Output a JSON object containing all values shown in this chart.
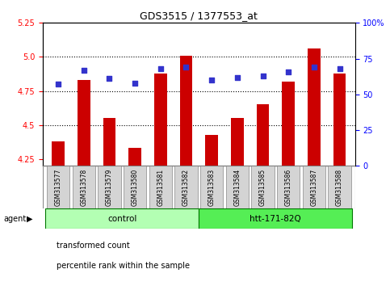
{
  "title": "GDS3515 / 1377553_at",
  "samples": [
    "GSM313577",
    "GSM313578",
    "GSM313579",
    "GSM313580",
    "GSM313581",
    "GSM313582",
    "GSM313583",
    "GSM313584",
    "GSM313585",
    "GSM313586",
    "GSM313587",
    "GSM313588"
  ],
  "transformed_count": [
    4.38,
    4.83,
    4.55,
    4.33,
    4.88,
    5.01,
    4.43,
    4.55,
    4.65,
    4.82,
    5.06,
    4.88
  ],
  "percentile_rank": [
    57,
    67,
    61,
    58,
    68,
    69,
    60,
    62,
    63,
    66,
    69,
    68
  ],
  "groups": [
    {
      "label": "control",
      "start": 0,
      "end": 6,
      "color": "#b3ffb3"
    },
    {
      "label": "htt-171-82Q",
      "start": 6,
      "end": 12,
      "color": "#55ee55"
    }
  ],
  "ylim_left": [
    4.2,
    5.25
  ],
  "ylim_right": [
    0,
    100
  ],
  "yticks_left": [
    4.25,
    4.5,
    4.75,
    5.0,
    5.25
  ],
  "yticks_right": [
    0,
    25,
    50,
    75,
    100
  ],
  "ytick_labels_right": [
    "0",
    "25",
    "50",
    "75",
    "100%"
  ],
  "bar_color": "#cc0000",
  "dot_color": "#3333cc",
  "bar_width": 0.5,
  "plot_bg_color": "#ffffff",
  "grid_yticks": [
    4.5,
    4.75,
    5.0
  ],
  "legend_items": [
    {
      "label": "transformed count",
      "color": "#cc0000"
    },
    {
      "label": "percentile rank within the sample",
      "color": "#3333cc"
    }
  ]
}
